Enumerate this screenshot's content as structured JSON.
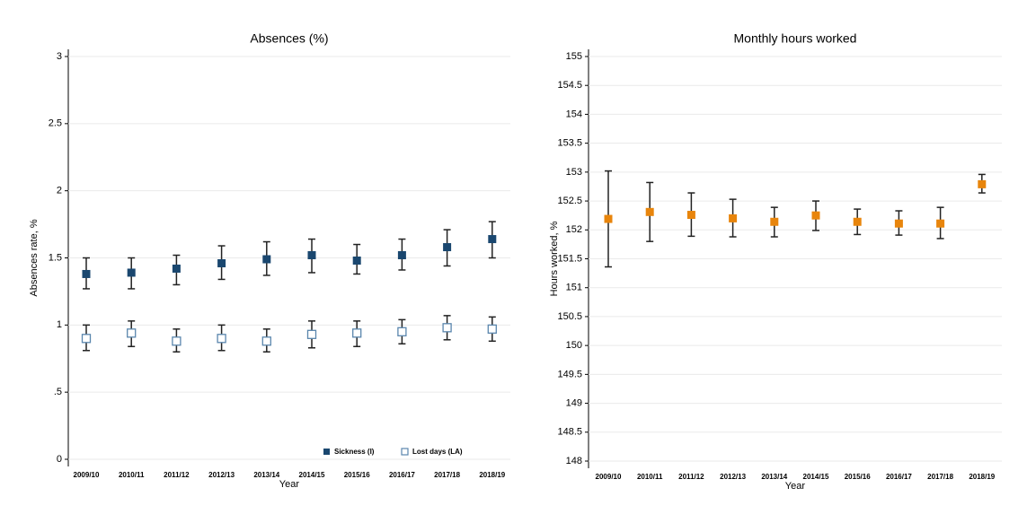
{
  "chart_data": [
    {
      "type": "errorbar",
      "title": "Absences (%)",
      "x_label": "Year",
      "y_label": "Absences rate, %",
      "categories": [
        "2009/10",
        "2010/11",
        "2011/12",
        "2012/13",
        "2013/14",
        "2014/15",
        "2015/16",
        "2016/17",
        "2017/18",
        "2018/19"
      ],
      "ylim": [
        0,
        3
      ],
      "yticks": [
        0,
        {
          "value": 0.5,
          "label": ".5"
        },
        1,
        1.5,
        2,
        2.5,
        3
      ],
      "grid": true,
      "legend": "bottom-right",
      "series": [
        {
          "name": "Sickness (I)",
          "color": "#1a476f",
          "marker": "square",
          "values": [
            1.38,
            1.39,
            1.42,
            1.46,
            1.49,
            1.52,
            1.48,
            1.52,
            1.58,
            1.64
          ],
          "lower": [
            1.27,
            1.27,
            1.3,
            1.34,
            1.37,
            1.39,
            1.38,
            1.41,
            1.44,
            1.5
          ],
          "upper": [
            1.5,
            1.5,
            1.52,
            1.59,
            1.62,
            1.64,
            1.6,
            1.64,
            1.71,
            1.77
          ]
        },
        {
          "name": "Lost days (LA)",
          "color": "#5a86ad",
          "marker": "hollow-square",
          "values": [
            0.9,
            0.94,
            0.88,
            0.9,
            0.88,
            0.93,
            0.94,
            0.95,
            0.98,
            0.97
          ],
          "lower": [
            0.81,
            0.84,
            0.8,
            0.81,
            0.8,
            0.83,
            0.84,
            0.86,
            0.89,
            0.88
          ],
          "upper": [
            1.0,
            1.03,
            0.97,
            1.0,
            0.97,
            1.03,
            1.03,
            1.04,
            1.07,
            1.06
          ]
        }
      ]
    },
    {
      "type": "errorbar",
      "title": "Monthly hours worked",
      "x_label": "Year",
      "y_label": "Hours worked, %",
      "categories": [
        "2009/10",
        "2010/11",
        "2011/12",
        "2012/13",
        "2013/14",
        "2014/15",
        "2015/16",
        "2016/17",
        "2017/18",
        "2018/19"
      ],
      "ylim": [
        148,
        155
      ],
      "yticks": [
        148,
        148.5,
        149,
        149.5,
        150,
        150.5,
        151,
        151.5,
        152,
        152.5,
        153,
        153.5,
        154,
        154.5,
        155
      ],
      "grid": true,
      "color": "#e8850c",
      "marker": "square",
      "values": [
        152.19,
        152.31,
        152.26,
        152.2,
        152.14,
        152.25,
        152.14,
        152.11,
        152.11,
        152.79
      ],
      "lower": [
        151.36,
        151.8,
        151.89,
        151.88,
        151.88,
        151.99,
        151.92,
        151.91,
        151.85,
        152.64
      ],
      "upper": [
        153.02,
        152.82,
        152.64,
        152.53,
        152.39,
        152.5,
        152.36,
        152.33,
        152.39,
        152.96
      ]
    }
  ]
}
